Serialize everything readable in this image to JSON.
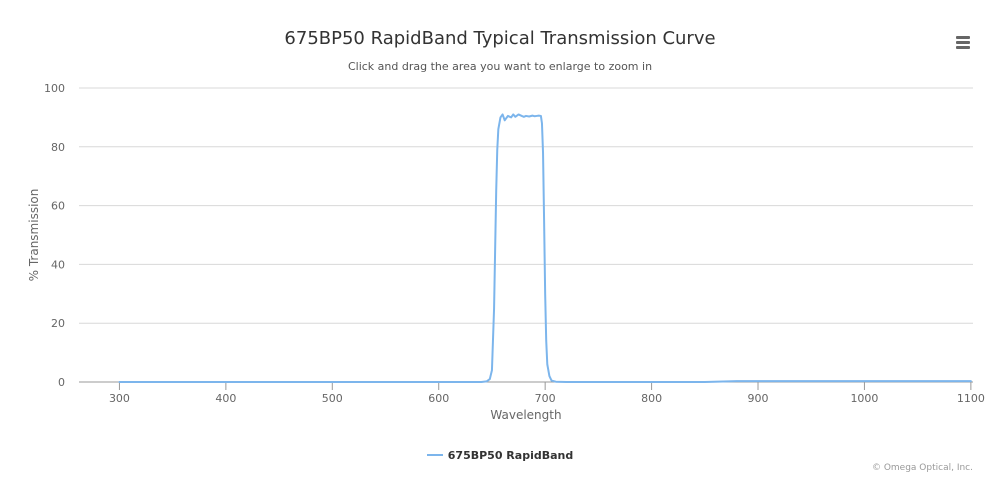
{
  "header": {
    "title": "675BP50 RapidBand Typical Transmission Curve",
    "subtitle": "Click and drag the area you want to enlarge to zoom in"
  },
  "menu": {
    "icon": "hamburger-menu-icon"
  },
  "credits": "© Omega Optical, Inc.",
  "colors": {
    "series": "#7cb5ec",
    "grid": "#d8d8d8",
    "axis": "#999999",
    "text": "#666666"
  },
  "chart_data": {
    "type": "line",
    "title": "675BP50 RapidBand Typical Transmission Curve",
    "subtitle": "Click and drag the area you want to enlarge to zoom in",
    "xlabel": "Wavelength",
    "ylabel": "% Transmission",
    "xlim": [
      262,
      1102
    ],
    "ylim": [
      0,
      100
    ],
    "xticks": [
      300,
      400,
      500,
      600,
      700,
      800,
      900,
      1000,
      1100
    ],
    "yticks": [
      0,
      20,
      40,
      60,
      80,
      100
    ],
    "grid": true,
    "legend_position": "bottom-center",
    "series": [
      {
        "name": "675BP50 RapidBand",
        "color": "#7cb5ec",
        "x": [
          300,
          400,
          500,
          600,
          640,
          645,
          648,
          650,
          652,
          654,
          655,
          656,
          658,
          660,
          662,
          665,
          668,
          670,
          672,
          675,
          678,
          680,
          682,
          685,
          688,
          690,
          692,
          694,
          696,
          697,
          698,
          699,
          700,
          701,
          702,
          704,
          706,
          710,
          720,
          750,
          800,
          850,
          880,
          900,
          950,
          1000,
          1050,
          1100
        ],
        "y": [
          0,
          0,
          0,
          0,
          0,
          0.2,
          1,
          4,
          25,
          65,
          79,
          86,
          90,
          91,
          89,
          90.5,
          90,
          91,
          90.2,
          91,
          90.5,
          90.2,
          90.5,
          90.3,
          90.6,
          90.4,
          90.5,
          90.6,
          90.5,
          88,
          78,
          55,
          30,
          14,
          6,
          2,
          0.5,
          0.1,
          0,
          0,
          0,
          0,
          0.3,
          0.3,
          0.3,
          0.3,
          0.3,
          0.3
        ]
      }
    ]
  }
}
